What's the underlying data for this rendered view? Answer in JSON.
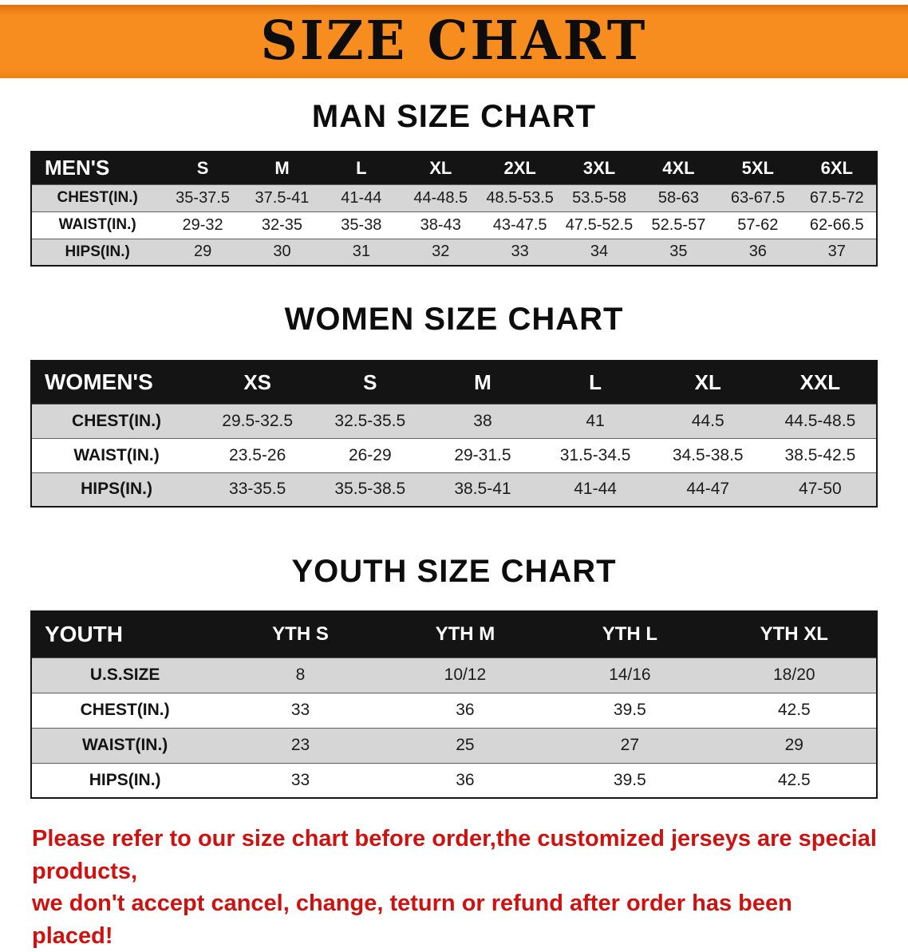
{
  "banner": {
    "title": "SIZE CHART"
  },
  "men": {
    "heading": "MAN SIZE CHART",
    "table": {
      "header": [
        "MEN'S",
        "S",
        "M",
        "L",
        "XL",
        "2XL",
        "3XL",
        "4XL",
        "5XL",
        "6XL"
      ],
      "rows": [
        {
          "label": "CHEST(IN.)",
          "shaded": true,
          "values": [
            "35-37.5",
            "37.5-41",
            "41-44",
            "44-48.5",
            "48.5-53.5",
            "53.5-58",
            "58-63",
            "63-67.5",
            "67.5-72"
          ]
        },
        {
          "label": "WAIST(IN.)",
          "shaded": false,
          "values": [
            "29-32",
            "32-35",
            "35-38",
            "38-43",
            "43-47.5",
            "47.5-52.5",
            "52.5-57",
            "57-62",
            "62-66.5"
          ]
        },
        {
          "label": "HIPS(IN.)",
          "shaded": true,
          "values": [
            "29",
            "30",
            "31",
            "32",
            "33",
            "34",
            "35",
            "36",
            "37"
          ]
        }
      ]
    }
  },
  "women": {
    "heading": "WOMEN SIZE CHART",
    "table": {
      "header": [
        "WOMEN'S",
        "XS",
        "S",
        "M",
        "L",
        "XL",
        "XXL"
      ],
      "rows": [
        {
          "label": "CHEST(IN.)",
          "shaded": true,
          "values": [
            "29.5-32.5",
            "32.5-35.5",
            "38",
            "41",
            "44.5",
            "44.5-48.5"
          ]
        },
        {
          "label": "WAIST(IN.)",
          "shaded": false,
          "values": [
            "23.5-26",
            "26-29",
            "29-31.5",
            "31.5-34.5",
            "34.5-38.5",
            "38.5-42.5"
          ]
        },
        {
          "label": "HIPS(IN.)",
          "shaded": true,
          "values": [
            "33-35.5",
            "35.5-38.5",
            "38.5-41",
            "41-44",
            "44-47",
            "47-50"
          ]
        }
      ]
    }
  },
  "youth": {
    "heading": "YOUTH SIZE CHART",
    "table": {
      "header": [
        "YOUTH",
        "YTH S",
        "YTH M",
        "YTH L",
        "YTH XL"
      ],
      "rows": [
        {
          "label": "U.S.SIZE",
          "shaded": true,
          "values": [
            "8",
            "10/12",
            "14/16",
            "18/20"
          ]
        },
        {
          "label": "CHEST(IN.)",
          "shaded": false,
          "values": [
            "33",
            "36",
            "39.5",
            "42.5"
          ]
        },
        {
          "label": "WAIST(IN.)",
          "shaded": true,
          "values": [
            "23",
            "25",
            "27",
            "29"
          ]
        },
        {
          "label": "HIPS(IN.)",
          "shaded": false,
          "values": [
            "33",
            "36",
            "39.5",
            "42.5"
          ]
        }
      ]
    }
  },
  "footer": {
    "line1": "Please refer to our size chart before order,the customized jerseys are special products,",
    "line2": "we don't accept cancel, change, teturn or refund after order has been placed!"
  },
  "colors": {
    "banner_orange": "#f68d1e",
    "table_header_black": "#141414",
    "row_shaded_gray": "#d6d6d6",
    "note_red": "#cf1110"
  }
}
